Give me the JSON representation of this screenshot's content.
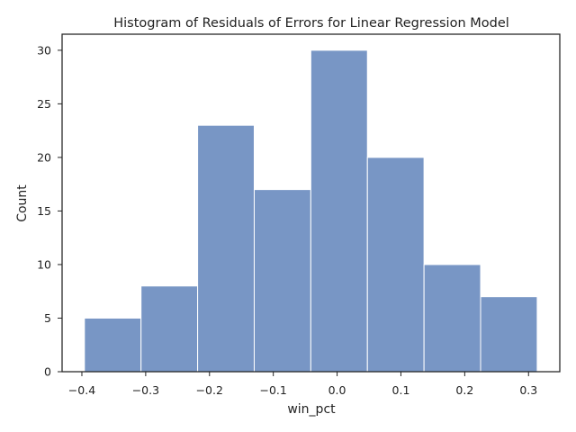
{
  "chart_data": {
    "type": "bar",
    "title": "Histogram of Residuals of Errors for Linear Regression Model",
    "xlabel": "win_pct",
    "ylabel": "Count",
    "bin_edges": [
      -0.396,
      -0.3073,
      -0.2186,
      -0.1299,
      -0.0412,
      0.0475,
      0.1362,
      0.2249,
      0.3136
    ],
    "values": [
      5,
      8,
      23,
      17,
      30,
      20,
      10,
      7
    ],
    "xlim": [
      -0.431,
      0.349
    ],
    "ylim": [
      0,
      31.5
    ],
    "xticks": [
      -0.4,
      -0.3,
      -0.2,
      -0.1,
      0.0,
      0.1,
      0.2,
      0.3
    ],
    "xtick_labels": [
      "−0.4",
      "−0.3",
      "−0.2",
      "−0.1",
      "0.0",
      "0.1",
      "0.2",
      "0.3"
    ],
    "yticks": [
      0,
      5,
      10,
      15,
      20,
      25,
      30
    ],
    "ytick_labels": [
      "0",
      "5",
      "10",
      "15",
      "20",
      "25",
      "30"
    ],
    "grid": false,
    "bar_color": "#7896c5",
    "bar_edge_color": "#ffffff"
  }
}
